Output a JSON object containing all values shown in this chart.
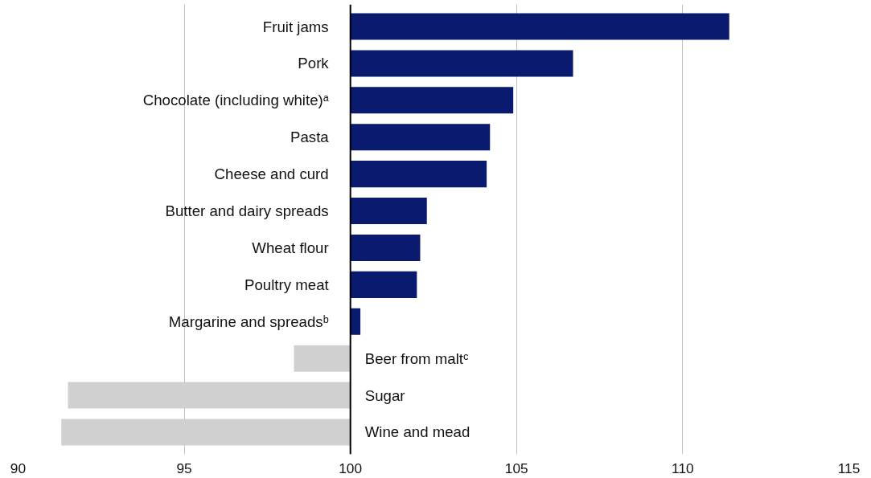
{
  "chart_data": {
    "type": "bar",
    "orientation": "horizontal",
    "categories": [
      "Fruit jams",
      "Pork",
      "Chocolate (including white)ᵃ",
      "Pasta",
      "Cheese and curd",
      "Butter and dairy spreads",
      "Wheat flour",
      "Poultry meat",
      "Margarine and spreadsᵇ",
      "Beer from maltᶜ",
      "Sugar",
      "Wine and  mead"
    ],
    "values": [
      11.4,
      6.7,
      4.9,
      4.2,
      4.1,
      2.3,
      2.1,
      2.0,
      0.3,
      -1.7,
      -8.5,
      -8.7
    ],
    "base": [
      100,
      100,
      100,
      100,
      100,
      100,
      100,
      100,
      100,
      100,
      100,
      100
    ],
    "colors": [
      "#0a1a6e",
      "#0a1a6e",
      "#0a1a6e",
      "#0a1a6e",
      "#0a1a6e",
      "#0a1a6e",
      "#0a1a6e",
      "#0a1a6e",
      "#0a1a6e",
      "#d0d0d0",
      "#d0d0d0",
      "#d0d0d0"
    ],
    "xlim": [
      90,
      115
    ],
    "xticks": [
      90,
      95,
      100,
      105,
      110,
      115
    ],
    "grid": "x"
  }
}
